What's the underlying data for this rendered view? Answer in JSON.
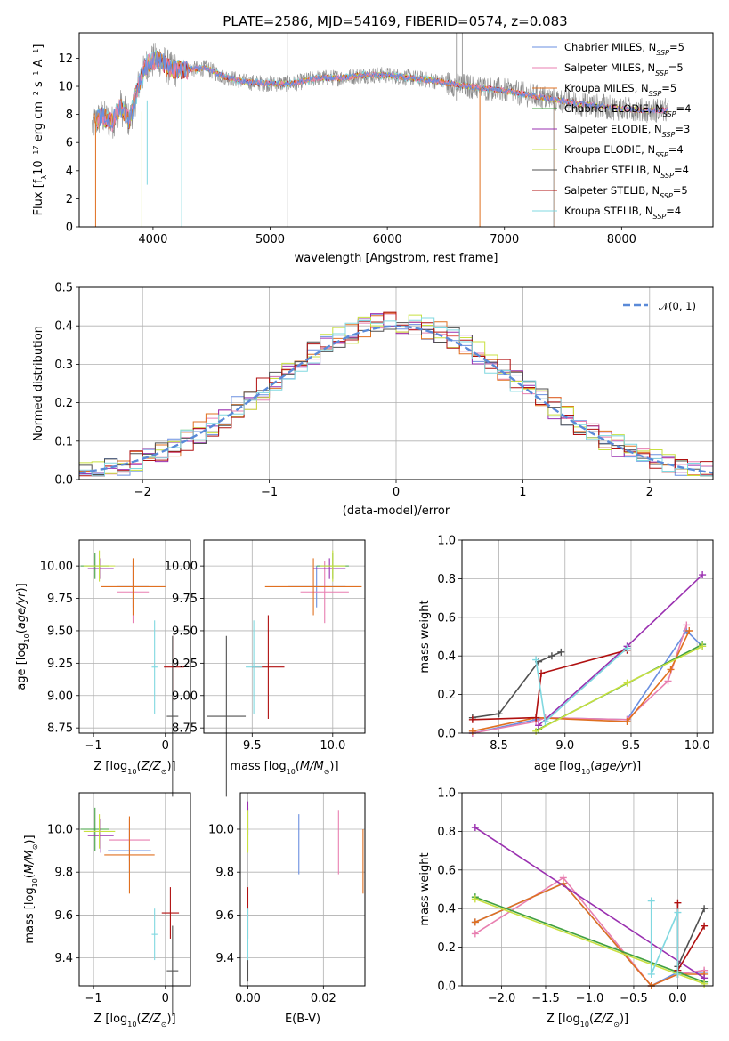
{
  "figure": {
    "title": "PLATE=2586, MJD=54169, FIBERID=0574, z=0.083"
  },
  "colors": {
    "chabrier_miles": "#6a8fe0",
    "salpeter_miles": "#e87fb0",
    "kroupa_miles": "#e07020",
    "chabrier_elodie": "#40a040",
    "salpeter_elodie": "#9a30b0",
    "kroupa_elodie": "#c8e040",
    "chabrier_stelib": "#505050",
    "salpeter_stelib": "#b01010",
    "kroupa_stelib": "#80d8e0",
    "normal": "#5a8ad8",
    "data": "#8a8a8a"
  },
  "chart_data": [
    {
      "id": "spectrum",
      "type": "line",
      "xlabel": "wavelength [Angstrom, rest frame]",
      "ylabel": "Flux [f",
      "ylabel_parts": [
        "Flux [f",
        "λ",
        "10",
        "−17",
        " erg cm",
        "−2",
        " s",
        "−1",
        " A",
        "−1",
        "]"
      ],
      "xlim": [
        3370,
        8780
      ],
      "ylim": [
        0,
        13.8
      ],
      "xticks": [
        4000,
        5000,
        6000,
        7000,
        8000
      ],
      "yticks": [
        0,
        2,
        4,
        6,
        8,
        10,
        12
      ],
      "grid": false,
      "legend_position": "top-right",
      "continuum": {
        "x": [
          3480,
          3560,
          3650,
          3720,
          3800,
          3880,
          3950,
          4050,
          4150,
          4300,
          4450,
          4600,
          4800,
          5000,
          5200,
          5400,
          5600,
          5800,
          6000,
          6200,
          6400,
          6600,
          6800,
          7000,
          7200,
          7400,
          7600,
          7800,
          8000,
          8200,
          8400
        ],
        "y": [
          7.2,
          7.9,
          7.4,
          8.6,
          7.5,
          10.2,
          11.6,
          12.0,
          11.2,
          11.2,
          11.3,
          10.7,
          10.3,
          10.2,
          10.2,
          10.6,
          10.6,
          10.8,
          10.8,
          10.6,
          10.4,
          10.1,
          9.9,
          9.7,
          9.4,
          9.1,
          8.8,
          8.6,
          8.4,
          8.3,
          8.3
        ]
      },
      "legend": [
        {
          "label": "Chabrier MILES, N",
          "sub": "SSP",
          "tail": "=5",
          "color_key": "chabrier_miles"
        },
        {
          "label": "Salpeter MILES, N",
          "sub": "SSP",
          "tail": "=5",
          "color_key": "salpeter_miles"
        },
        {
          "label": "Kroupa MILES, N",
          "sub": "SSP",
          "tail": "=5",
          "color_key": "kroupa_miles"
        },
        {
          "label": "Chabrier ELODIE, N",
          "sub": "SSP",
          "tail": "=4",
          "color_key": "chabrier_elodie"
        },
        {
          "label": "Salpeter ELODIE, N",
          "sub": "SSP",
          "tail": "=3",
          "color_key": "salpeter_elodie"
        },
        {
          "label": "Kroupa ELODIE, N",
          "sub": "SSP",
          "tail": "=4",
          "color_key": "kroupa_elodie"
        },
        {
          "label": "Chabrier STELIB, N",
          "sub": "SSP",
          "tail": "=4",
          "color_key": "chabrier_stelib"
        },
        {
          "label": "Salpeter STELIB, N",
          "sub": "SSP",
          "tail": "=5",
          "color_key": "salpeter_stelib"
        },
        {
          "label": "Kroupa STELIB, N",
          "sub": "SSP",
          "tail": "=4",
          "color_key": "kroupa_stelib"
        }
      ]
    },
    {
      "id": "residuals",
      "type": "line",
      "xlabel": "(data-model)/error",
      "ylabel": "Normed distribution",
      "xlim": [
        -2.5,
        2.5
      ],
      "ylim": [
        0,
        0.5
      ],
      "xticks": [
        -2,
        -1,
        0,
        1,
        2
      ],
      "xtick_labels": [
        "−2",
        "−1",
        "0",
        "1",
        "2"
      ],
      "yticks": [
        0.0,
        0.1,
        0.2,
        0.3,
        0.4,
        0.5
      ],
      "ytick_labels": [
        "0.0",
        "0.1",
        "0.2",
        "0.3",
        "0.4",
        "0.5"
      ],
      "grid": true,
      "legend_position": "top-right",
      "legend": [
        {
          "label": "𝒩(0, 1)",
          "color_key": "normal",
          "style": "dashed"
        }
      ],
      "bin_width": 0.1,
      "bin_start": -2.5
    },
    {
      "id": "age_vs_Z",
      "type": "scatter",
      "xlabel": "Z [log",
      "ylabel": "age  [log",
      "xlim": [
        -1.2,
        0.35
      ],
      "ylim": [
        8.71,
        10.2
      ],
      "xticks": [
        -1,
        0
      ],
      "xtick_labels": [
        "−1",
        "0"
      ],
      "yticks": [
        8.75,
        9.0,
        9.25,
        9.5,
        9.75,
        10.0
      ],
      "ytick_labels": [
        "8.75",
        "9.00",
        "9.25",
        "9.50",
        "9.75",
        "10.00"
      ],
      "grid": true,
      "points": [
        {
          "color_key": "chabrier_miles",
          "x": -0.45,
          "xerr": 0.22,
          "y": 9.84,
          "yerr": 0.16
        },
        {
          "color_key": "salpeter_miles",
          "x": -0.45,
          "xerr": 0.22,
          "y": 9.8,
          "yerr": 0.24
        },
        {
          "color_key": "kroupa_miles",
          "x": -0.45,
          "xerr": 0.45,
          "y": 9.84,
          "yerr": 0.22
        },
        {
          "color_key": "chabrier_elodie",
          "x": -0.98,
          "xerr": 0.2,
          "y": 10.0,
          "yerr": 0.1
        },
        {
          "color_key": "salpeter_elodie",
          "x": -0.9,
          "xerr": 0.18,
          "y": 9.98,
          "yerr": 0.08
        },
        {
          "color_key": "kroupa_elodie",
          "x": -0.92,
          "xerr": 0.22,
          "y": 10.0,
          "yerr": 0.12
        },
        {
          "color_key": "chabrier_stelib",
          "x": 0.1,
          "xerr": 0.08,
          "y": 8.84,
          "yerr": 0.62
        },
        {
          "color_key": "salpeter_stelib",
          "x": 0.12,
          "xerr": 0.14,
          "y": 9.22,
          "yerr": 0.26
        },
        {
          "color_key": "kroupa_stelib",
          "x": -0.15,
          "xerr": 0.04,
          "y": 9.22,
          "yerr": 0.36
        }
      ]
    },
    {
      "id": "age_vs_mass",
      "type": "scatter",
      "xlabel": "mass [log",
      "ylabel": "",
      "xlim": [
        9.2,
        10.2
      ],
      "ylim": [
        8.71,
        10.2
      ],
      "xticks": [
        9.5,
        10.0
      ],
      "xtick_labels": [
        "9.5",
        "10.0"
      ],
      "yticks": [
        8.75,
        9.0,
        9.25,
        9.5,
        9.75,
        10.0
      ],
      "ytick_labels": [
        "8.75",
        "9.00",
        "9.25",
        "9.50",
        "9.75",
        "10.00"
      ],
      "grid": true,
      "points": [
        {
          "color_key": "chabrier_miles",
          "x": 9.9,
          "xerr": 0.18,
          "y": 9.84,
          "yerr": 0.16
        },
        {
          "color_key": "salpeter_miles",
          "x": 9.95,
          "xerr": 0.15,
          "y": 9.8,
          "yerr": 0.24
        },
        {
          "color_key": "kroupa_miles",
          "x": 9.88,
          "xerr": 0.3,
          "y": 9.84,
          "yerr": 0.22
        },
        {
          "color_key": "chabrier_elodie",
          "x": 10.0,
          "xerr": 0.1,
          "y": 10.0,
          "yerr": 0.1
        },
        {
          "color_key": "salpeter_elodie",
          "x": 9.98,
          "xerr": 0.1,
          "y": 9.98,
          "yerr": 0.08
        },
        {
          "color_key": "kroupa_elodie",
          "x": 10.0,
          "xerr": 0.08,
          "y": 10.0,
          "yerr": 0.12
        },
        {
          "color_key": "chabrier_stelib",
          "x": 9.34,
          "xerr": 0.12,
          "y": 8.84,
          "yerr": 0.62
        },
        {
          "color_key": "salpeter_stelib",
          "x": 9.6,
          "xerr": 0.1,
          "y": 9.22,
          "yerr": 0.4
        },
        {
          "color_key": "kroupa_stelib",
          "x": 9.51,
          "xerr": 0.05,
          "y": 9.22,
          "yerr": 0.36
        }
      ]
    },
    {
      "id": "mass_weight_vs_age",
      "type": "line",
      "xlabel": "age  [log",
      "ylabel": "mass weight",
      "xlim": [
        8.22,
        10.12
      ],
      "ylim": [
        0,
        1.0
      ],
      "xticks": [
        8.5,
        9.0,
        9.5,
        10.0
      ],
      "xtick_labels": [
        "8.5",
        "9.0",
        "9.5",
        "10.0"
      ],
      "yticks": [
        0.0,
        0.2,
        0.4,
        0.6,
        0.8,
        1.0
      ],
      "ytick_labels": [
        "0.0",
        "0.2",
        "0.4",
        "0.6",
        "0.8",
        "1.0"
      ],
      "grid": true,
      "series": [
        {
          "color_key": "chabrier_miles",
          "x": [
            8.3,
            8.78,
            8.85,
            9.47,
            9.92,
            10.04
          ],
          "y": [
            0.0,
            0.07,
            0.08,
            0.07,
            0.53,
            0.45
          ]
        },
        {
          "color_key": "salpeter_miles",
          "x": [
            8.3,
            8.78,
            8.85,
            9.47,
            9.78,
            9.92
          ],
          "y": [
            0.0,
            0.06,
            0.08,
            0.07,
            0.27,
            0.56
          ]
        },
        {
          "color_key": "kroupa_miles",
          "x": [
            8.3,
            8.78,
            9.47,
            9.8,
            9.94
          ],
          "y": [
            0.01,
            0.08,
            0.06,
            0.33,
            0.53
          ]
        },
        {
          "color_key": "chabrier_elodie",
          "x": [
            8.8,
            10.04
          ],
          "y": [
            0.02,
            0.46
          ]
        },
        {
          "color_key": "salpeter_elodie",
          "x": [
            8.8,
            9.47,
            10.04
          ],
          "y": [
            0.04,
            0.45,
            0.82
          ]
        },
        {
          "color_key": "kroupa_elodie",
          "x": [
            8.78,
            9.47,
            10.04
          ],
          "y": [
            0.01,
            0.26,
            0.45
          ]
        },
        {
          "color_key": "chabrier_stelib",
          "x": [
            8.3,
            8.5,
            8.8,
            8.9,
            8.97
          ],
          "y": [
            0.08,
            0.1,
            0.37,
            0.4,
            0.42
          ]
        },
        {
          "color_key": "salpeter_stelib",
          "x": [
            8.3,
            8.78,
            8.82,
            9.47
          ],
          "y": [
            0.07,
            0.08,
            0.31,
            0.43
          ]
        },
        {
          "color_key": "kroupa_stelib",
          "x": [
            8.78,
            8.85,
            9.47
          ],
          "y": [
            0.38,
            0.06,
            0.44
          ]
        }
      ]
    },
    {
      "id": "mass_vs_Z",
      "type": "scatter",
      "xlabel": "Z [log",
      "ylabel": "mass [log",
      "xlim": [
        -1.2,
        0.35
      ],
      "ylim": [
        9.27,
        10.17
      ],
      "xticks": [
        -1,
        0
      ],
      "xtick_labels": [
        "−1",
        "0"
      ],
      "yticks": [
        9.4,
        9.6,
        9.8,
        10.0
      ],
      "ytick_labels": [
        "9.4",
        "9.6",
        "9.8",
        "10.0"
      ],
      "grid": true,
      "points": [
        {
          "color_key": "chabrier_miles",
          "x": -0.5,
          "xerr": 0.3,
          "y": 9.9,
          "yerr": 0.1
        },
        {
          "color_key": "salpeter_miles",
          "x": -0.5,
          "xerr": 0.28,
          "y": 9.95,
          "yerr": 0.1
        },
        {
          "color_key": "kroupa_miles",
          "x": -0.5,
          "xerr": 0.35,
          "y": 9.88,
          "yerr": 0.18
        },
        {
          "color_key": "chabrier_elodie",
          "x": -0.98,
          "xerr": 0.2,
          "y": 10.0,
          "yerr": 0.1
        },
        {
          "color_key": "salpeter_elodie",
          "x": -0.9,
          "xerr": 0.18,
          "y": 9.97,
          "yerr": 0.08
        },
        {
          "color_key": "kroupa_elodie",
          "x": -0.92,
          "xerr": 0.22,
          "y": 9.99,
          "yerr": 0.08
        },
        {
          "color_key": "chabrier_stelib",
          "x": 0.1,
          "xerr": 0.08,
          "y": 9.34,
          "yerr": 0.21
        },
        {
          "color_key": "salpeter_stelib",
          "x": 0.07,
          "xerr": 0.12,
          "y": 9.61,
          "yerr": 0.12
        },
        {
          "color_key": "kroupa_stelib",
          "x": -0.15,
          "xerr": 0.04,
          "y": 9.51,
          "yerr": 0.12
        }
      ]
    },
    {
      "id": "mass_vs_ebv",
      "type": "scatter",
      "xlabel": "E(B-V)",
      "ylabel": "",
      "xlim": [
        -0.002,
        0.031
      ],
      "ylim": [
        9.27,
        10.17
      ],
      "xticks": [
        0.0,
        0.02
      ],
      "xtick_labels": [
        "0.00",
        "0.02"
      ],
      "yticks": [
        9.4,
        9.6,
        9.8,
        10.0
      ],
      "ytick_labels": [
        "9.4",
        "9.6",
        "9.8",
        "10.0"
      ],
      "grid": true,
      "points": [
        {
          "color_key": "chabrier_miles",
          "x": 0.0135,
          "xerr": 0,
          "y": 9.93,
          "yerr": 0.14
        },
        {
          "color_key": "salpeter_miles",
          "x": 0.024,
          "xerr": 0,
          "y": 9.94,
          "yerr": 0.15
        },
        {
          "color_key": "kroupa_miles",
          "x": 0.0305,
          "xerr": 0,
          "y": 9.85,
          "yerr": 0.15
        },
        {
          "color_key": "chabrier_elodie",
          "x": 0.0,
          "xerr": 0,
          "y": 10.0,
          "yerr": 0.1
        },
        {
          "color_key": "salpeter_elodie",
          "x": 0.0,
          "xerr": 0,
          "y": 10.05,
          "yerr": 0.08
        },
        {
          "color_key": "kroupa_elodie",
          "x": 0.0,
          "xerr": 0,
          "y": 9.99,
          "yerr": 0.1
        },
        {
          "color_key": "chabrier_stelib",
          "x": 0.0,
          "xerr": 0,
          "y": 9.34,
          "yerr": 0.05
        },
        {
          "color_key": "salpeter_stelib",
          "x": 0.0,
          "xerr": 0,
          "y": 9.61,
          "yerr": 0.12
        },
        {
          "color_key": "kroupa_stelib",
          "x": 0.0,
          "xerr": 0,
          "y": 9.51,
          "yerr": 0.12
        }
      ]
    },
    {
      "id": "mass_weight_vs_Z",
      "type": "line",
      "xlabel": "Z [log",
      "ylabel": "mass weight",
      "xlim": [
        -2.45,
        0.4
      ],
      "ylim": [
        0,
        1.0
      ],
      "xticks": [
        -2.0,
        -1.5,
        -1.0,
        -0.5,
        0.0
      ],
      "xtick_labels": [
        "−2.0",
        "−1.5",
        "−1.0",
        "−0.5",
        "0.0"
      ],
      "yticks": [
        0.0,
        0.2,
        0.4,
        0.6,
        0.8,
        1.0
      ],
      "ytick_labels": [
        "0.0",
        "0.2",
        "0.4",
        "0.6",
        "0.8",
        "1.0"
      ],
      "grid": true,
      "series": [
        {
          "color_key": "chabrier_miles",
          "x": [
            -2.3,
            -1.3,
            -0.3,
            0.0,
            0.3
          ],
          "y": [
            0.33,
            0.53,
            0.0,
            0.07,
            0.07
          ]
        },
        {
          "color_key": "salpeter_miles",
          "x": [
            -2.3,
            -1.3,
            -0.3,
            0.0,
            0.3
          ],
          "y": [
            0.27,
            0.56,
            0.0,
            0.06,
            0.08
          ]
        },
        {
          "color_key": "kroupa_miles",
          "x": [
            -2.3,
            -1.3,
            -0.3,
            0.0,
            0.3
          ],
          "y": [
            0.33,
            0.53,
            0.0,
            0.06,
            0.06
          ]
        },
        {
          "color_key": "chabrier_elodie",
          "x": [
            -2.3,
            0.3
          ],
          "y": [
            0.46,
            0.02
          ]
        },
        {
          "color_key": "salpeter_elodie",
          "x": [
            -2.3,
            0.3
          ],
          "y": [
            0.82,
            0.04
          ]
        },
        {
          "color_key": "kroupa_elodie",
          "x": [
            -2.3,
            0.3
          ],
          "y": [
            0.45,
            0.01
          ]
        },
        {
          "color_key": "chabrier_stelib",
          "x": [
            0.0,
            0.3
          ],
          "y": [
            0.1,
            0.4
          ]
        },
        {
          "color_key": "salpeter_stelib",
          "x": [
            0.0,
            0.0,
            0.3
          ],
          "y": [
            0.43,
            0.08,
            0.31
          ]
        },
        {
          "color_key": "kroupa_stelib",
          "x": [
            -0.3,
            -0.3,
            0.0,
            0.0
          ],
          "y": [
            0.44,
            0.06,
            0.38,
            0.06
          ]
        }
      ]
    }
  ]
}
